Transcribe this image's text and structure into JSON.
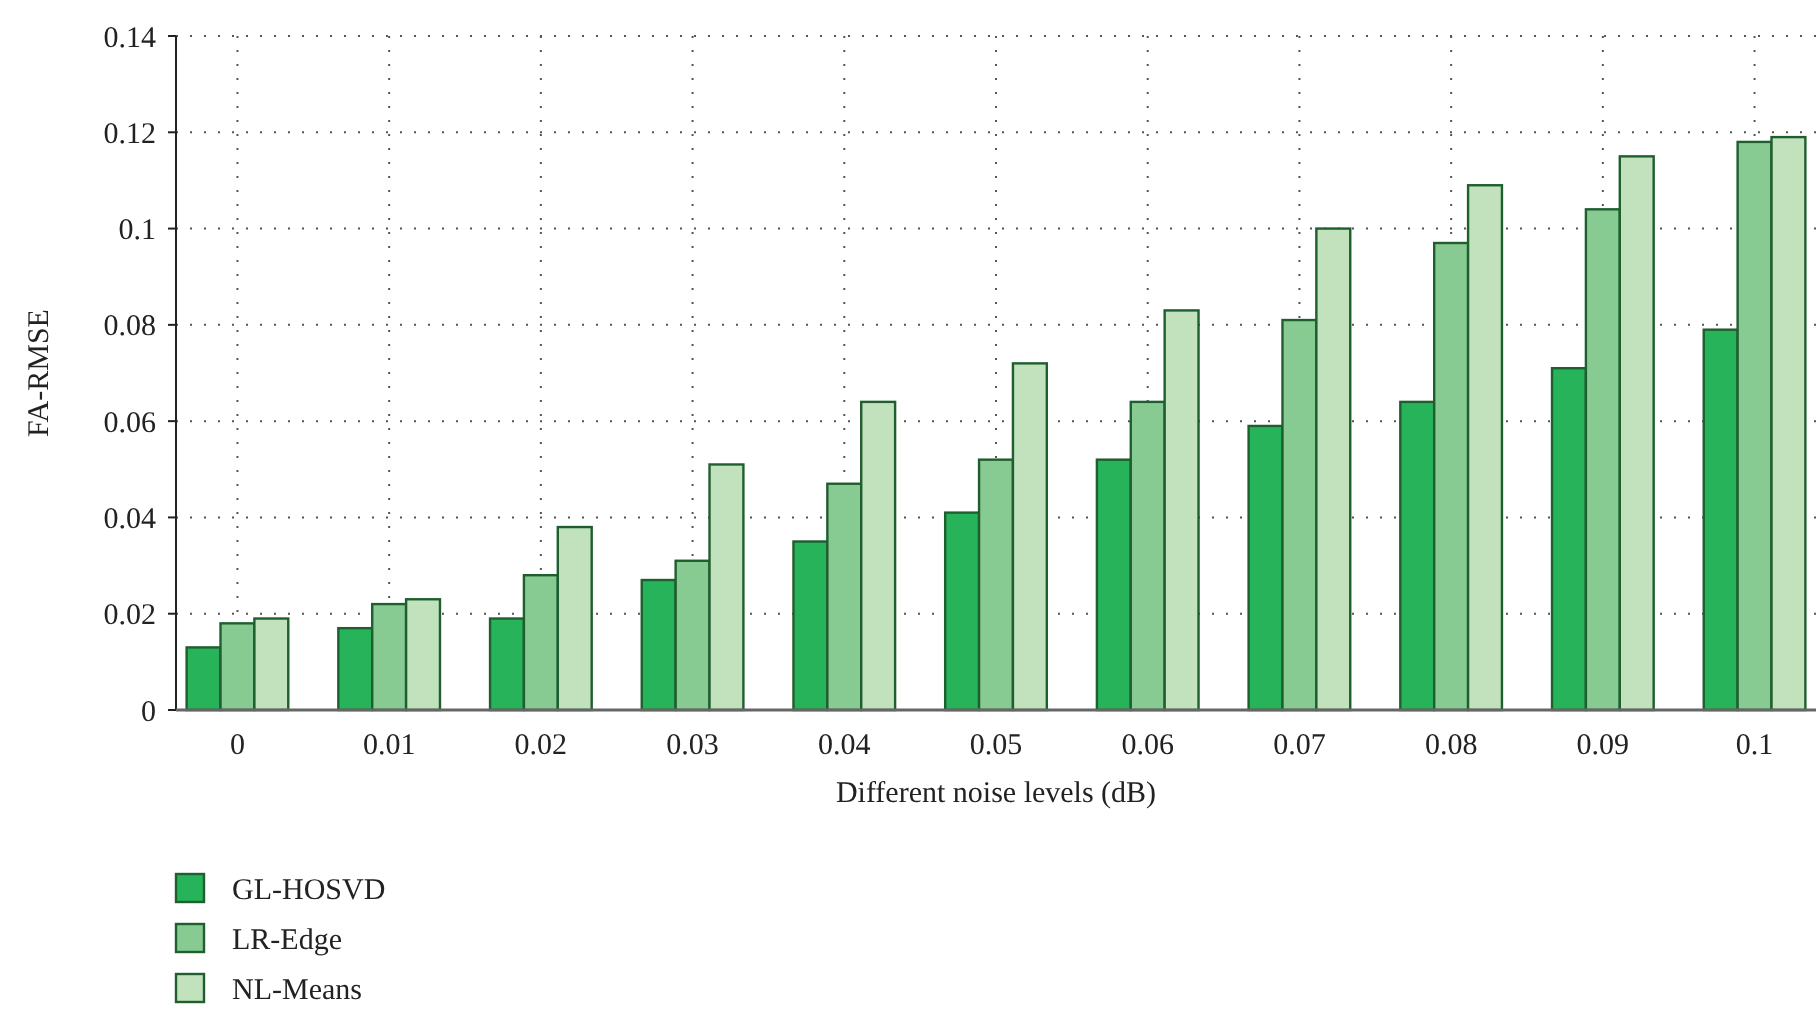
{
  "chart_data": {
    "type": "bar",
    "xlabel": "Different noise levels (dB)",
    "ylabel": "FA-RMSE",
    "categories": [
      "0",
      "0.01",
      "0.02",
      "0.03",
      "0.04",
      "0.05",
      "0.06",
      "0.07",
      "0.08",
      "0.09",
      "0.1"
    ],
    "series": [
      {
        "name": "GL-HOSVD",
        "color": "#27b35a",
        "values": [
          0.013,
          0.017,
          0.019,
          0.027,
          0.035,
          0.041,
          0.052,
          0.059,
          0.064,
          0.071,
          0.079
        ]
      },
      {
        "name": "LR-Edge",
        "color": "#88cb92",
        "values": [
          0.018,
          0.022,
          0.028,
          0.031,
          0.047,
          0.052,
          0.064,
          0.081,
          0.097,
          0.104,
          0.118
        ]
      },
      {
        "name": "NL-Means",
        "color": "#c1e2bd",
        "values": [
          0.019,
          0.023,
          0.038,
          0.051,
          0.064,
          0.072,
          0.083,
          0.1,
          0.109,
          0.115,
          0.119
        ]
      }
    ],
    "ylim": [
      0,
      0.14
    ],
    "yticks": [
      0,
      0.02,
      0.04,
      0.06,
      0.08,
      0.1,
      0.12,
      0.14
    ],
    "grid": true,
    "legend": "bottom left"
  }
}
